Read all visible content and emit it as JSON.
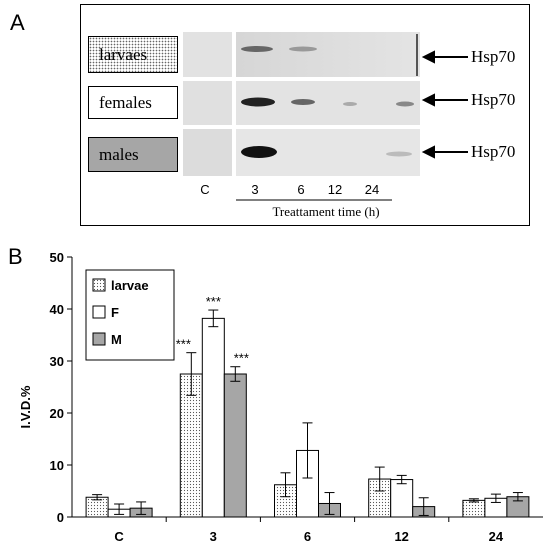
{
  "panel_a": {
    "letter": "A",
    "sample_labels": [
      "larvaes",
      "females",
      "males"
    ],
    "band_label": "Hsp70",
    "lane_labels": [
      "C",
      "3",
      "6",
      "12",
      "24"
    ],
    "time_axis_label": "Treattament time (h)"
  },
  "panel_b": {
    "letter": "B"
  },
  "chart_data": {
    "type": "bar",
    "categories": [
      "C",
      "3",
      "6",
      "12",
      "24"
    ],
    "series": [
      {
        "name": "larvae",
        "values": [
          3.8,
          27.5,
          6.2,
          7.3,
          3.2
        ],
        "errors": [
          0.5,
          4.1,
          2.3,
          2.3,
          0.3
        ]
      },
      {
        "name": "F",
        "values": [
          1.5,
          38.2,
          12.8,
          7.2,
          3.6
        ],
        "errors": [
          1.0,
          1.6,
          5.3,
          0.8,
          0.8
        ]
      },
      {
        "name": "M",
        "values": [
          1.7,
          27.5,
          2.6,
          2.0,
          3.9
        ],
        "errors": [
          1.2,
          1.4,
          2.1,
          1.7,
          0.8
        ]
      }
    ],
    "annotations": [
      {
        "category": "3",
        "series": "larvae",
        "text": "***"
      },
      {
        "category": "3",
        "series": "F",
        "text": "***"
      },
      {
        "category": "3",
        "series": "M",
        "text": "***"
      }
    ],
    "ylabel": "I.V.D.%",
    "ylim": [
      0,
      50
    ],
    "yticks": [
      0,
      10,
      20,
      30,
      40,
      50
    ],
    "legend_position": "top-left",
    "grid": false
  }
}
